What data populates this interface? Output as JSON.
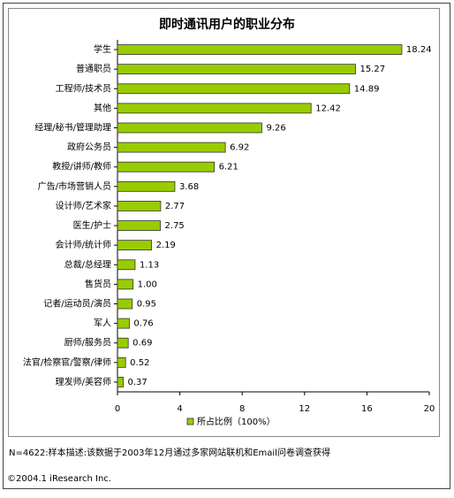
{
  "chart_data": {
    "type": "bar",
    "orientation": "horizontal",
    "title": "即时通讯用户的职业分布",
    "categories": [
      "学生",
      "普通职员",
      "工程师/技术员",
      "其他",
      "经理/秘书/管理助理",
      "政府公务员",
      "教授/讲师/教师",
      "广告/市场营销人员",
      "设计师/艺术家",
      "医生/护士",
      "会计师/统计师",
      "总裁/总经理",
      "售货员",
      "记者/运动员/演员",
      "军人",
      "厨师/服务员",
      "法官/检察官/警察/律师",
      "理发师/美容师"
    ],
    "series": [
      {
        "name": "所占比例（100%）",
        "color": "#99cc00",
        "values": [
          18.24,
          15.27,
          14.89,
          12.42,
          9.26,
          6.92,
          6.21,
          3.68,
          2.77,
          2.75,
          2.19,
          1.13,
          1.0,
          0.95,
          0.76,
          0.69,
          0.52,
          0.37
        ],
        "value_labels": [
          "18.24",
          "15.27",
          "14.89",
          "12.42",
          "9.26",
          "6.92",
          "6.21",
          "3.68",
          "2.77",
          "2.75",
          "2.19",
          "1.13",
          "1.00",
          "0.95",
          "0.76",
          "0.69",
          "0.52",
          "0.37"
        ]
      }
    ],
    "xlim": [
      0,
      20
    ],
    "xticks": [
      0,
      4,
      8,
      12,
      16,
      20
    ],
    "legend": "bottom",
    "note": "N=4622:样本描述:该数据于2003年12月通过多家网站联机和Email问卷调查获得",
    "source": "©2004.1 iResearch Inc."
  }
}
